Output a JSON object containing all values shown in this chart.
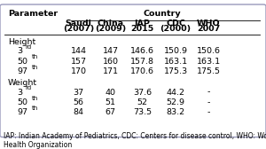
{
  "title": "Country",
  "param_label": "Parameter",
  "col_headers": [
    [
      "Saudi",
      "(2007)"
    ],
    [
      "China",
      "(2009)"
    ],
    [
      "IAP",
      "2015"
    ],
    [
      "CDC",
      "(2000)"
    ],
    [
      "WHO",
      "2007"
    ]
  ],
  "row_groups": [
    {
      "group": "Height",
      "rows": [
        {
          "label": "3",
          "sup": "rd",
          "values": [
            "144",
            "147",
            "146.6",
            "150.9",
            "150.6"
          ]
        },
        {
          "label": "50",
          "sup": "th",
          "values": [
            "157",
            "160",
            "157.8",
            "163.1",
            "163.1"
          ]
        },
        {
          "label": "97",
          "sup": "th",
          "values": [
            "170",
            "171",
            "170.6",
            "175.3",
            "175.5"
          ]
        }
      ]
    },
    {
      "group": "Weight",
      "rows": [
        {
          "label": "3",
          "sup": "rd",
          "values": [
            "37",
            "40",
            "37.6",
            "44.2",
            "-"
          ]
        },
        {
          "label": "50",
          "sup": "th",
          "values": [
            "56",
            "51",
            "52",
            "52.9",
            "-"
          ]
        },
        {
          "label": "97",
          "sup": "th",
          "values": [
            "84",
            "67",
            "73.5",
            "83.2",
            "-"
          ]
        }
      ]
    }
  ],
  "footnote": "IAP: Indian Academy of Pediatrics, CDC: Centers for disease control, WHO: World\nHealth Organization",
  "bg_color": "#FFFFFF",
  "border_color": "#9999BB",
  "font_size": 6.8,
  "sup_font_size": 5.0,
  "footnote_font_size": 5.5
}
